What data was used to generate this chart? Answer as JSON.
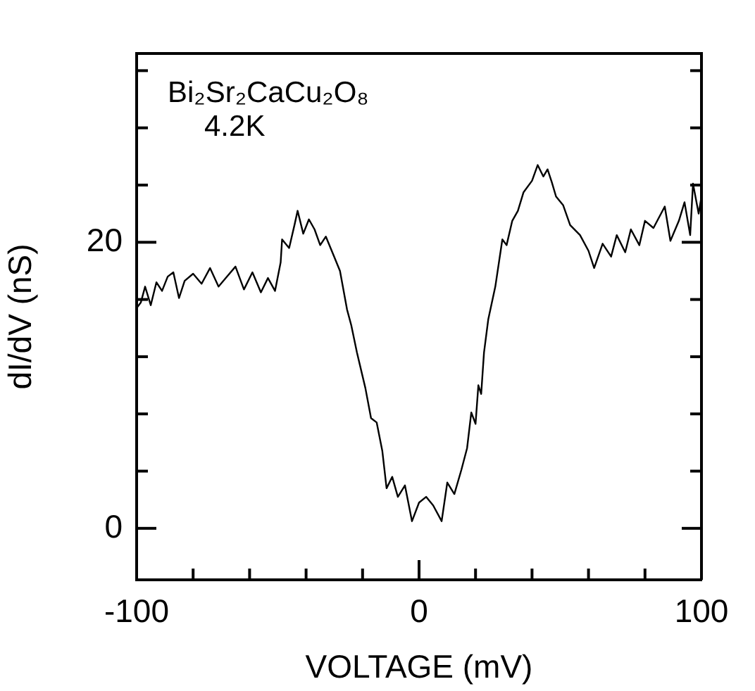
{
  "chart_data": {
    "type": "line",
    "xlabel": "VOLTAGE (mV)",
    "ylabel": "dI/dV (nS)",
    "annotations": [
      "Bi₂Sr₂CaCu₂O₈",
      "4.2K"
    ],
    "xlim": [
      -100,
      100
    ],
    "xticks": [
      {
        "value": -100,
        "label": "-100"
      },
      {
        "value": -80,
        "label": null
      },
      {
        "value": -60,
        "label": null
      },
      {
        "value": -40,
        "label": null
      },
      {
        "value": -20,
        "label": null
      },
      0,
      {
        "value": 20,
        "label": null
      },
      {
        "value": 40,
        "label": null
      },
      {
        "value": 60,
        "label": null
      },
      {
        "value": 80,
        "label": null
      },
      100
    ],
    "ylim": [
      -3.6,
      33.2
    ],
    "yticks": [
      0,
      {
        "value": 4,
        "label": null
      },
      {
        "value": 8,
        "label": null
      },
      {
        "value": 12,
        "label": null
      },
      {
        "value": 16,
        "label": null
      },
      20,
      {
        "value": 24,
        "label": null
      },
      {
        "value": 28,
        "label": null
      },
      {
        "value": 32,
        "label": null
      }
    ],
    "grid": false,
    "legend": false,
    "marker": "none",
    "line_style": "solid",
    "series": [
      {
        "color": "#000000",
        "x": [
          -100,
          -98.5,
          -97,
          -95,
          -93,
          -91,
          -89,
          -87,
          -85,
          -83,
          -80,
          -77,
          -74,
          -71,
          -68,
          -65,
          -62,
          -59,
          -56,
          -53.5,
          -51,
          -49,
          -48.5,
          -46,
          -44,
          -43,
          -41,
          -39,
          -37,
          -35,
          -33,
          -30.5,
          -28,
          -25.5,
          -24,
          -22,
          -19,
          -17,
          -15,
          -13,
          -11.5,
          -9.5,
          -7.5,
          -5,
          -2.5,
          0,
          2.5,
          5,
          8,
          10,
          12.5,
          15,
          17,
          18.5,
          20,
          21,
          22,
          23,
          24.5,
          27,
          29.5,
          31,
          33,
          35,
          37,
          40,
          42,
          44,
          45.5,
          47,
          48.5,
          51,
          53.5,
          57,
          60,
          62,
          65,
          68,
          70,
          73,
          75,
          78,
          80,
          83,
          87,
          89,
          92,
          94,
          96,
          97,
          99,
          100
        ],
        "values": [
          15.4,
          15.8,
          16.9,
          15.6,
          17.2,
          16.6,
          17.6,
          17.9,
          16.1,
          17.3,
          17.8,
          17.1,
          18.2,
          16.9,
          17.6,
          18.3,
          16.7,
          17.9,
          16.5,
          17.5,
          16.6,
          18.6,
          20.2,
          19.6,
          21.3,
          22.2,
          20.6,
          21.6,
          20.9,
          19.8,
          20.4,
          19.2,
          18.0,
          15.3,
          14.2,
          12.3,
          9.8,
          7.7,
          7.4,
          5.4,
          2.8,
          3.6,
          2.2,
          3.0,
          0.5,
          1.8,
          2.2,
          1.6,
          0.5,
          3.2,
          2.4,
          4.1,
          5.6,
          8.1,
          7.3,
          10.0,
          9.4,
          12.3,
          14.6,
          16.9,
          20.2,
          19.8,
          21.5,
          22.2,
          23.5,
          24.3,
          25.4,
          24.6,
          25.1,
          24.2,
          23.2,
          22.6,
          21.2,
          20.5,
          19.4,
          18.2,
          19.9,
          19.0,
          20.5,
          19.3,
          20.9,
          19.8,
          21.5,
          21.0,
          22.5,
          20.1,
          21.5,
          22.8,
          20.5,
          24.1,
          22.0,
          23.2
        ]
      }
    ]
  }
}
